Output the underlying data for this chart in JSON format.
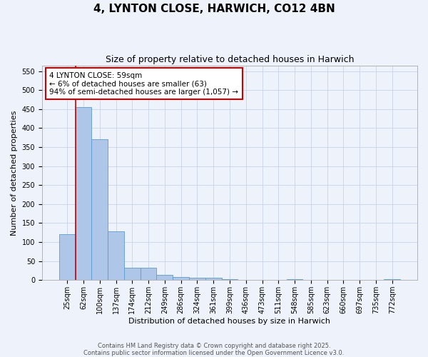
{
  "title": "4, LYNTON CLOSE, HARWICH, CO12 4BN",
  "subtitle": "Size of property relative to detached houses in Harwich",
  "xlabel": "Distribution of detached houses by size in Harwich",
  "ylabel": "Number of detached properties",
  "categories": [
    "25sqm",
    "62sqm",
    "100sqm",
    "137sqm",
    "174sqm",
    "212sqm",
    "249sqm",
    "286sqm",
    "324sqm",
    "361sqm",
    "399sqm",
    "436sqm",
    "473sqm",
    "511sqm",
    "548sqm",
    "585sqm",
    "623sqm",
    "660sqm",
    "697sqm",
    "735sqm",
    "772sqm"
  ],
  "values": [
    120,
    455,
    370,
    128,
    33,
    33,
    13,
    9,
    6,
    6,
    2,
    0,
    0,
    0,
    3,
    0,
    0,
    0,
    0,
    0,
    3
  ],
  "bar_color": "#aec6e8",
  "bar_edge_color": "#5b9bd5",
  "grid_color": "#c8d4e8",
  "background_color": "#eef2fa",
  "annotation_text": "4 LYNTON CLOSE: 59sqm\n← 6% of detached houses are smaller (63)\n94% of semi-detached houses are larger (1,057) →",
  "annotation_box_color": "#ffffff",
  "annotation_box_edge_color": "#cc0000",
  "property_line_color": "#cc0000",
  "ylim": [
    0,
    565
  ],
  "yticks": [
    0,
    50,
    100,
    150,
    200,
    250,
    300,
    350,
    400,
    450,
    500,
    550
  ],
  "footer_text": "Contains HM Land Registry data © Crown copyright and database right 2025.\nContains public sector information licensed under the Open Government Licence v3.0.",
  "title_fontsize": 11,
  "subtitle_fontsize": 9,
  "axis_label_fontsize": 8,
  "tick_fontsize": 7,
  "annotation_fontsize": 7.5,
  "footer_fontsize": 6
}
